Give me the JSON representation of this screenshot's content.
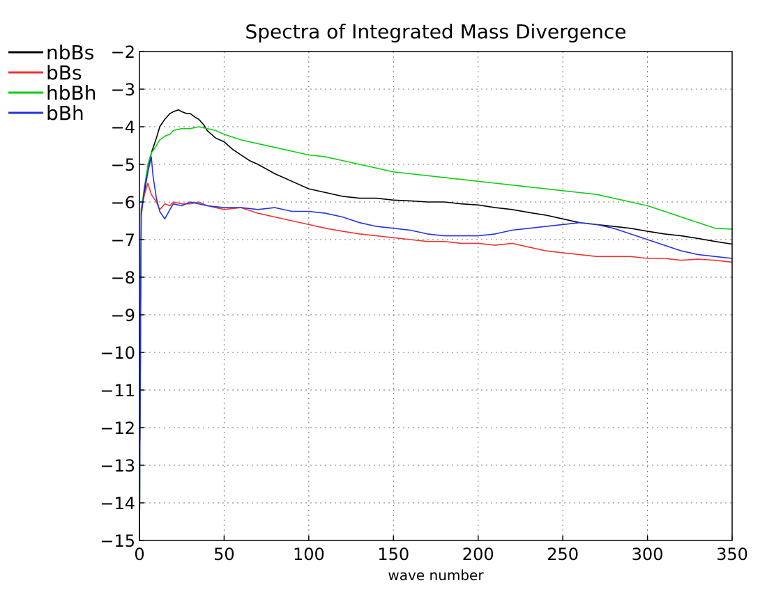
{
  "chart_data": {
    "type": "line",
    "title": "Spectra of Integrated Mass Divergence",
    "xlabel": "wave number",
    "ylabel": "",
    "xlim": [
      0,
      350
    ],
    "ylim": [
      -15,
      -2
    ],
    "x_ticks": [
      0,
      50,
      100,
      150,
      200,
      250,
      300,
      350
    ],
    "y_ticks": [
      -2,
      -3,
      -4,
      -5,
      -6,
      -7,
      -8,
      -9,
      -10,
      -11,
      -12,
      -13,
      -14,
      -15
    ],
    "grid": true,
    "legend_position": "top-left",
    "series": [
      {
        "name": "nbBs",
        "color": "#000000",
        "x": [
          0,
          1,
          2,
          3,
          5,
          7,
          10,
          12,
          15,
          18,
          20,
          23,
          25,
          28,
          30,
          33,
          35,
          38,
          40,
          45,
          50,
          55,
          60,
          65,
          70,
          80,
          90,
          100,
          110,
          120,
          130,
          140,
          150,
          160,
          170,
          180,
          190,
          200,
          210,
          220,
          230,
          240,
          250,
          260,
          270,
          280,
          290,
          300,
          310,
          320,
          330,
          340,
          350
        ],
        "y": [
          -15,
          -6.4,
          -6.0,
          -5.7,
          -5.2,
          -4.7,
          -4.3,
          -4.0,
          -3.8,
          -3.65,
          -3.6,
          -3.55,
          -3.6,
          -3.65,
          -3.65,
          -3.75,
          -3.8,
          -3.95,
          -4.1,
          -4.3,
          -4.4,
          -4.6,
          -4.75,
          -4.9,
          -5.0,
          -5.25,
          -5.45,
          -5.65,
          -5.75,
          -5.85,
          -5.9,
          -5.9,
          -5.95,
          -5.97,
          -6.0,
          -6.0,
          -6.05,
          -6.08,
          -6.15,
          -6.2,
          -6.28,
          -6.35,
          -6.45,
          -6.55,
          -6.6,
          -6.65,
          -6.7,
          -6.78,
          -6.85,
          -6.9,
          -6.97,
          -7.05,
          -7.12
        ]
      },
      {
        "name": "bBs",
        "color": "#ee3333",
        "x": [
          0,
          1,
          2,
          3,
          5,
          7,
          10,
          12,
          15,
          18,
          20,
          25,
          30,
          35,
          40,
          50,
          60,
          70,
          80,
          90,
          100,
          110,
          120,
          130,
          140,
          150,
          160,
          170,
          180,
          190,
          200,
          210,
          220,
          230,
          240,
          250,
          260,
          270,
          280,
          290,
          300,
          310,
          320,
          330,
          340,
          350
        ],
        "y": [
          -15,
          -6.4,
          -6.0,
          -5.8,
          -5.5,
          -5.8,
          -6.0,
          -6.2,
          -6.05,
          -6.1,
          -6.0,
          -6.05,
          -6.05,
          -6.0,
          -6.1,
          -6.2,
          -6.15,
          -6.3,
          -6.4,
          -6.5,
          -6.6,
          -6.7,
          -6.78,
          -6.85,
          -6.9,
          -6.95,
          -7.0,
          -7.05,
          -7.05,
          -7.1,
          -7.1,
          -7.15,
          -7.1,
          -7.2,
          -7.3,
          -7.35,
          -7.4,
          -7.45,
          -7.45,
          -7.45,
          -7.5,
          -7.5,
          -7.55,
          -7.52,
          -7.55,
          -7.6
        ]
      },
      {
        "name": "hbBh",
        "color": "#11cc11",
        "x": [
          0,
          1,
          2,
          3,
          5,
          7,
          10,
          12,
          15,
          18,
          20,
          25,
          30,
          35,
          40,
          45,
          50,
          60,
          70,
          80,
          90,
          100,
          110,
          120,
          130,
          140,
          150,
          160,
          170,
          180,
          190,
          200,
          210,
          220,
          230,
          240,
          250,
          260,
          270,
          280,
          290,
          300,
          310,
          320,
          330,
          340,
          350
        ],
        "y": [
          -15,
          -6.2,
          -5.9,
          -5.6,
          -5.0,
          -4.7,
          -4.5,
          -4.35,
          -4.25,
          -4.2,
          -4.1,
          -4.05,
          -4.05,
          -4.0,
          -4.05,
          -4.1,
          -4.2,
          -4.35,
          -4.45,
          -4.55,
          -4.65,
          -4.75,
          -4.8,
          -4.9,
          -5.0,
          -5.1,
          -5.2,
          -5.25,
          -5.3,
          -5.35,
          -5.4,
          -5.45,
          -5.5,
          -5.55,
          -5.6,
          -5.65,
          -5.7,
          -5.75,
          -5.8,
          -5.9,
          -6.0,
          -6.1,
          -6.25,
          -6.4,
          -6.55,
          -6.7,
          -6.72
        ]
      },
      {
        "name": "bBh",
        "color": "#2233dd",
        "x": [
          0,
          1,
          2,
          3,
          5,
          7,
          8,
          10,
          12,
          15,
          18,
          20,
          25,
          30,
          35,
          40,
          50,
          60,
          70,
          80,
          90,
          100,
          110,
          120,
          130,
          140,
          150,
          160,
          170,
          180,
          190,
          200,
          210,
          220,
          230,
          240,
          250,
          260,
          270,
          280,
          290,
          300,
          310,
          320,
          330,
          340,
          350
        ],
        "y": [
          -15,
          -6.3,
          -6.0,
          -5.6,
          -5.2,
          -4.8,
          -5.3,
          -5.9,
          -6.25,
          -6.45,
          -6.2,
          -6.05,
          -6.1,
          -6.0,
          -6.05,
          -6.1,
          -6.15,
          -6.15,
          -6.2,
          -6.15,
          -6.25,
          -6.25,
          -6.3,
          -6.4,
          -6.55,
          -6.65,
          -6.7,
          -6.75,
          -6.85,
          -6.9,
          -6.9,
          -6.9,
          -6.85,
          -6.75,
          -6.7,
          -6.65,
          -6.6,
          -6.55,
          -6.6,
          -6.7,
          -6.85,
          -7.0,
          -7.15,
          -7.3,
          -7.4,
          -7.45,
          -7.5
        ]
      }
    ]
  }
}
